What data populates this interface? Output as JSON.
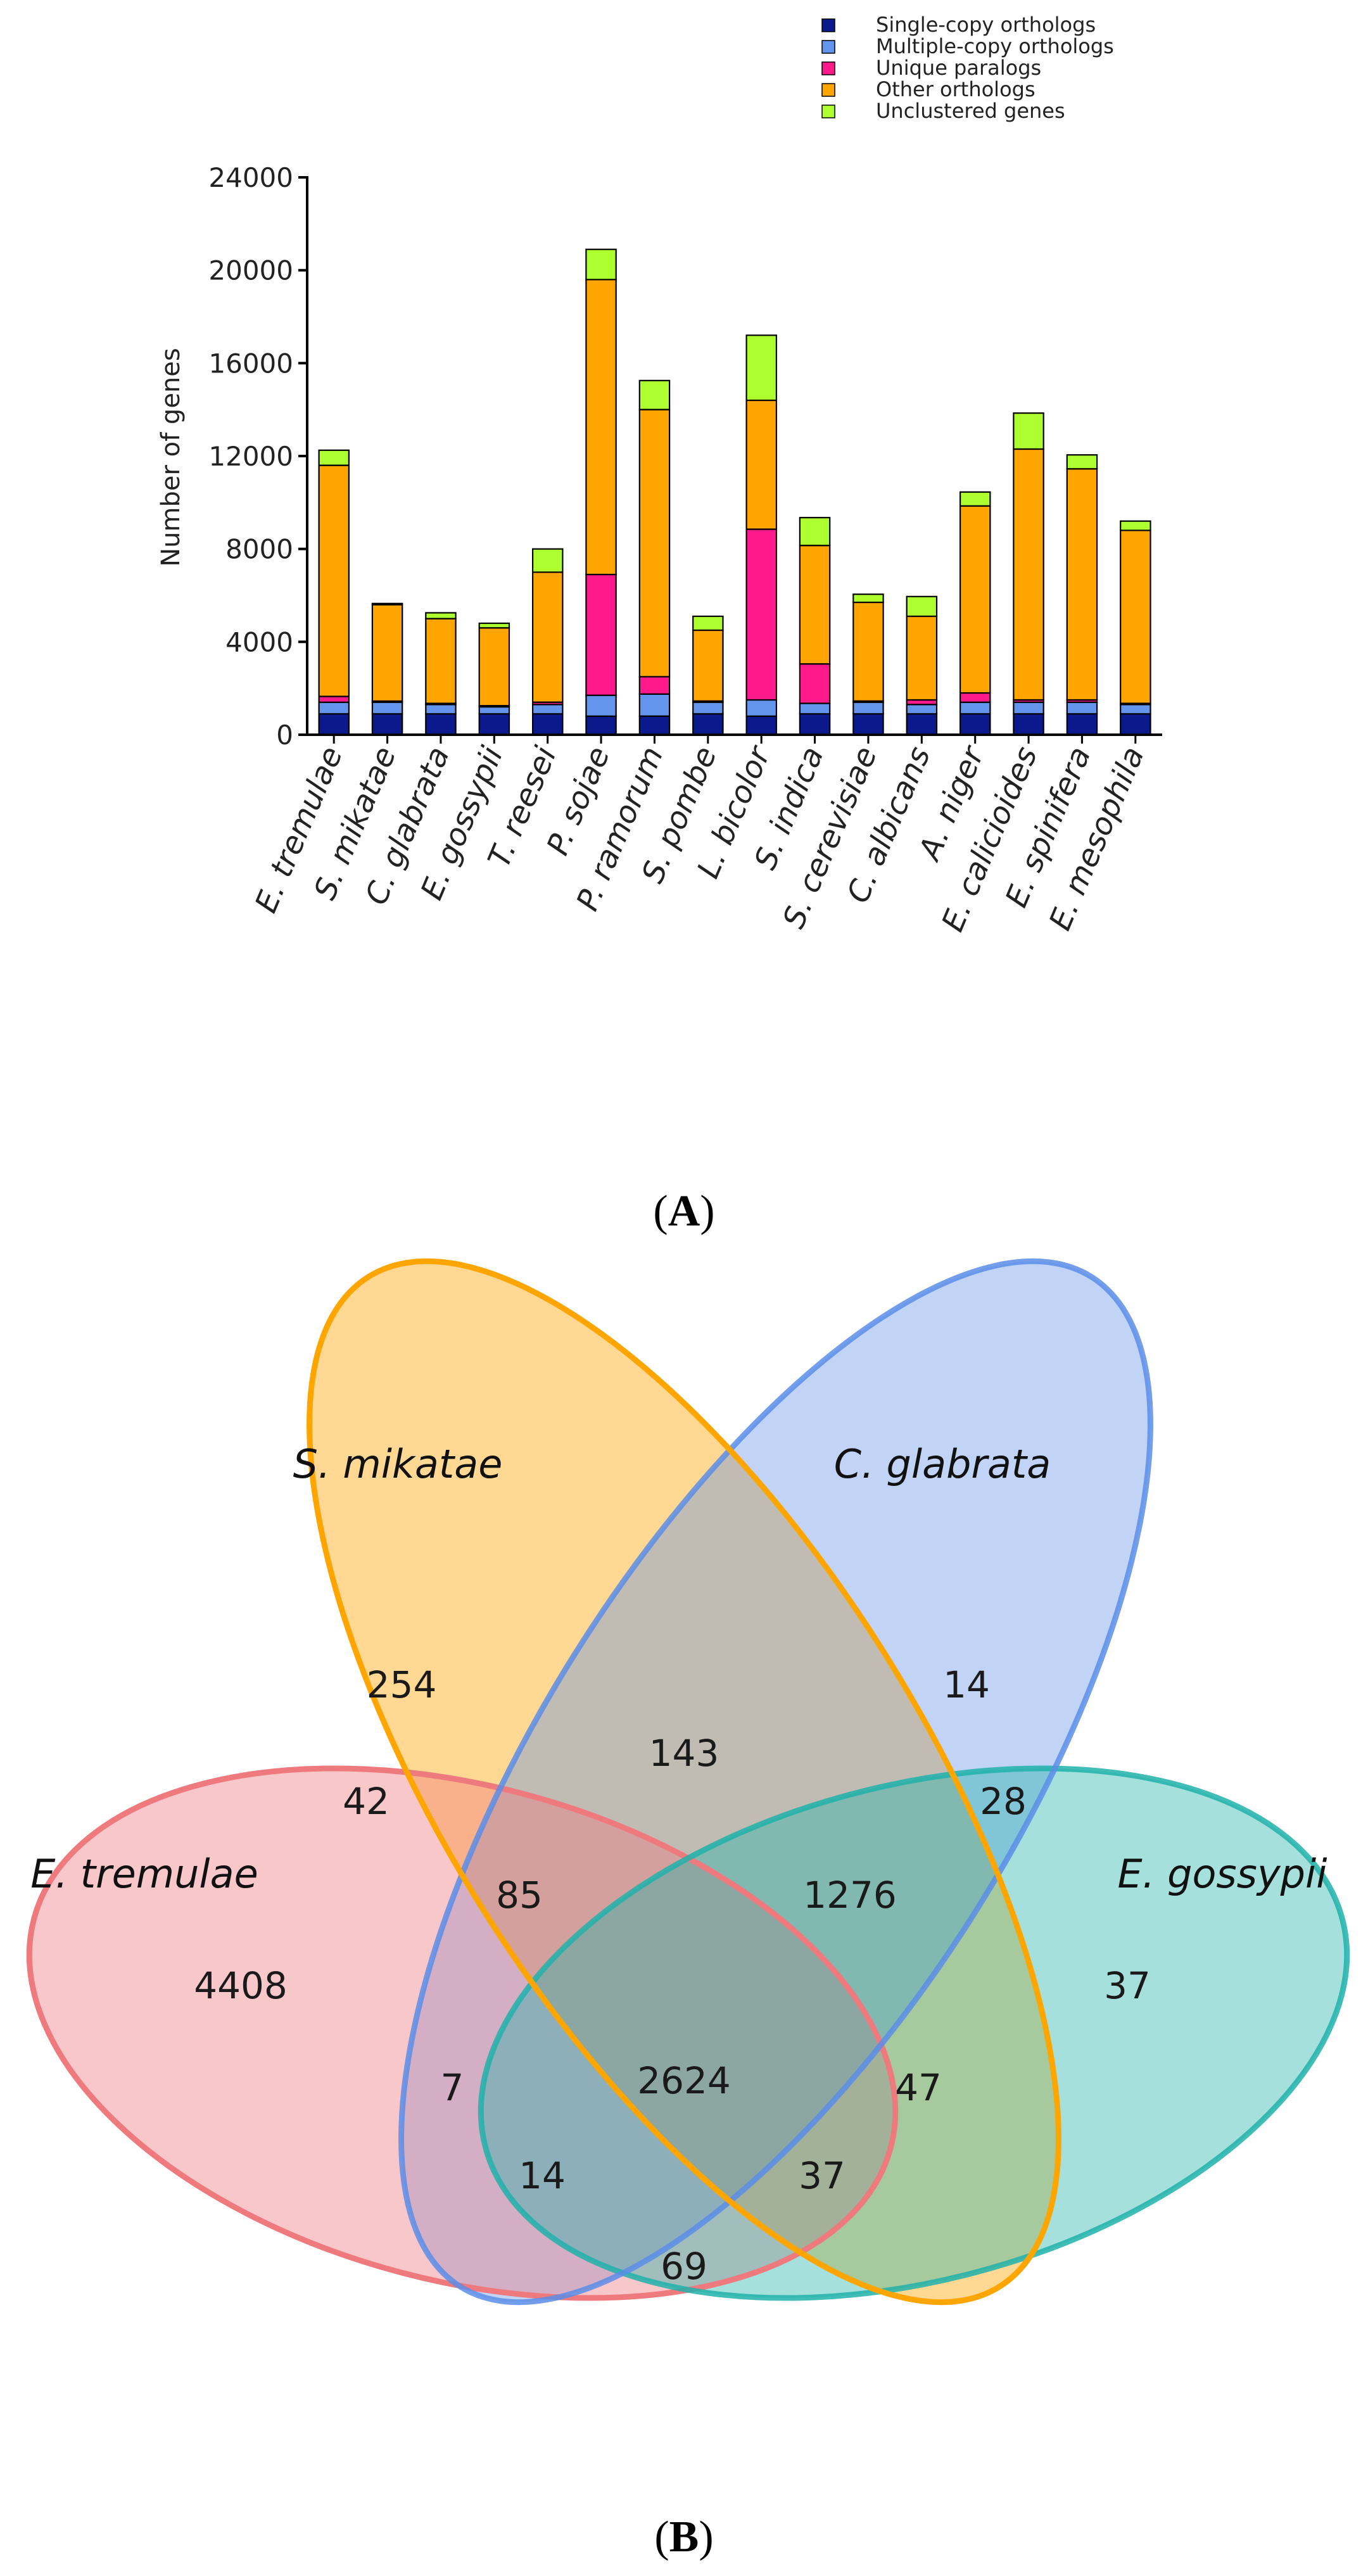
{
  "chart_data": [
    {
      "type": "bar",
      "stacked": true,
      "panel_label": "A",
      "title": "",
      "xlabel": "",
      "ylabel": "Number of genes",
      "ylim": [
        0,
        24000
      ],
      "yticks": [
        "0",
        "4000",
        "8000",
        "12000",
        "16000",
        "20000",
        "24000"
      ],
      "categories": [
        "E. tremulae",
        "S. mikatae",
        "C. glabrata",
        "E. gossypii",
        "T. reesei",
        "P. sojae",
        "P. ramorum",
        "S. pombe",
        "L. bicolor",
        "S. indica",
        "S. cerevisiae",
        "C. albicans",
        "A. niger",
        "E. calicioides",
        "E. spinifera",
        "E. mesophila"
      ],
      "series": [
        {
          "name": "Single-copy orthologs",
          "color": "#0a1a8c",
          "values": [
            900,
            900,
            900,
            900,
            900,
            800,
            800,
            900,
            800,
            900,
            900,
            900,
            900,
            900,
            900,
            900
          ]
        },
        {
          "name": "Multiple-copy orthologs",
          "color": "#6495ed",
          "values": [
            500,
            500,
            400,
            300,
            400,
            900,
            950,
            500,
            700,
            450,
            500,
            400,
            500,
            500,
            500,
            400
          ]
        },
        {
          "name": "Unique paralogs",
          "color": "#ff1a8c",
          "values": [
            250,
            50,
            50,
            50,
            100,
            5200,
            750,
            50,
            7350,
            1700,
            50,
            200,
            400,
            100,
            100,
            50
          ]
        },
        {
          "name": "Other orthologs",
          "color": "#ffa500",
          "values": [
            9950,
            4150,
            3650,
            3350,
            5600,
            12700,
            11500,
            3050,
            5550,
            5100,
            4250,
            3600,
            8050,
            10800,
            9950,
            7450
          ]
        },
        {
          "name": "Unclustered genes",
          "color": "#adff2f",
          "values": [
            650,
            50,
            250,
            200,
            1000,
            1300,
            1250,
            600,
            2800,
            1200,
            350,
            850,
            600,
            1550,
            600,
            400
          ]
        }
      ],
      "legend": "top-right"
    },
    {
      "type": "venn",
      "panel_label": "B",
      "sets": [
        {
          "name": "S. mikatae",
          "color": "#ffa500"
        },
        {
          "name": "C. glabrata",
          "color": "#5b8de8"
        },
        {
          "name": "E. tremulae",
          "color": "#ee7a7e"
        },
        {
          "name": "E. gossypii",
          "color": "#20b2aa"
        }
      ],
      "regions": [
        {
          "sets": [
            "S. mikatae"
          ],
          "value": "254"
        },
        {
          "sets": [
            "C. glabrata"
          ],
          "value": "14"
        },
        {
          "sets": [
            "S. mikatae",
            "C. glabrata"
          ],
          "value": "143"
        },
        {
          "sets": [
            "E. tremulae",
            "S. mikatae"
          ],
          "value": "42"
        },
        {
          "sets": [
            "C. glabrata",
            "E. gossypii"
          ],
          "value": "28"
        },
        {
          "sets": [
            "E. tremulae",
            "S. mikatae",
            "C. glabrata"
          ],
          "value": "85"
        },
        {
          "sets": [
            "S. mikatae",
            "C. glabrata",
            "E. gossypii"
          ],
          "value": "1276"
        },
        {
          "sets": [
            "E. tremulae"
          ],
          "value": "4408"
        },
        {
          "sets": [
            "E. gossypii"
          ],
          "value": "37"
        },
        {
          "sets": [
            "E. tremulae",
            "C. glabrata"
          ],
          "value": "7"
        },
        {
          "sets": [
            "E. tremulae",
            "S. mikatae",
            "C. glabrata",
            "E. gossypii"
          ],
          "value": "2624"
        },
        {
          "sets": [
            "S. mikatae",
            "E. gossypii"
          ],
          "value": "47"
        },
        {
          "sets": [
            "E. tremulae",
            "C. glabrata",
            "E. gossypii"
          ],
          "value": "14"
        },
        {
          "sets": [
            "E. tremulae",
            "S. mikatae",
            "E. gossypii"
          ],
          "value": "37"
        },
        {
          "sets": [
            "E. tremulae",
            "E. gossypii"
          ],
          "value": "69"
        }
      ]
    }
  ]
}
